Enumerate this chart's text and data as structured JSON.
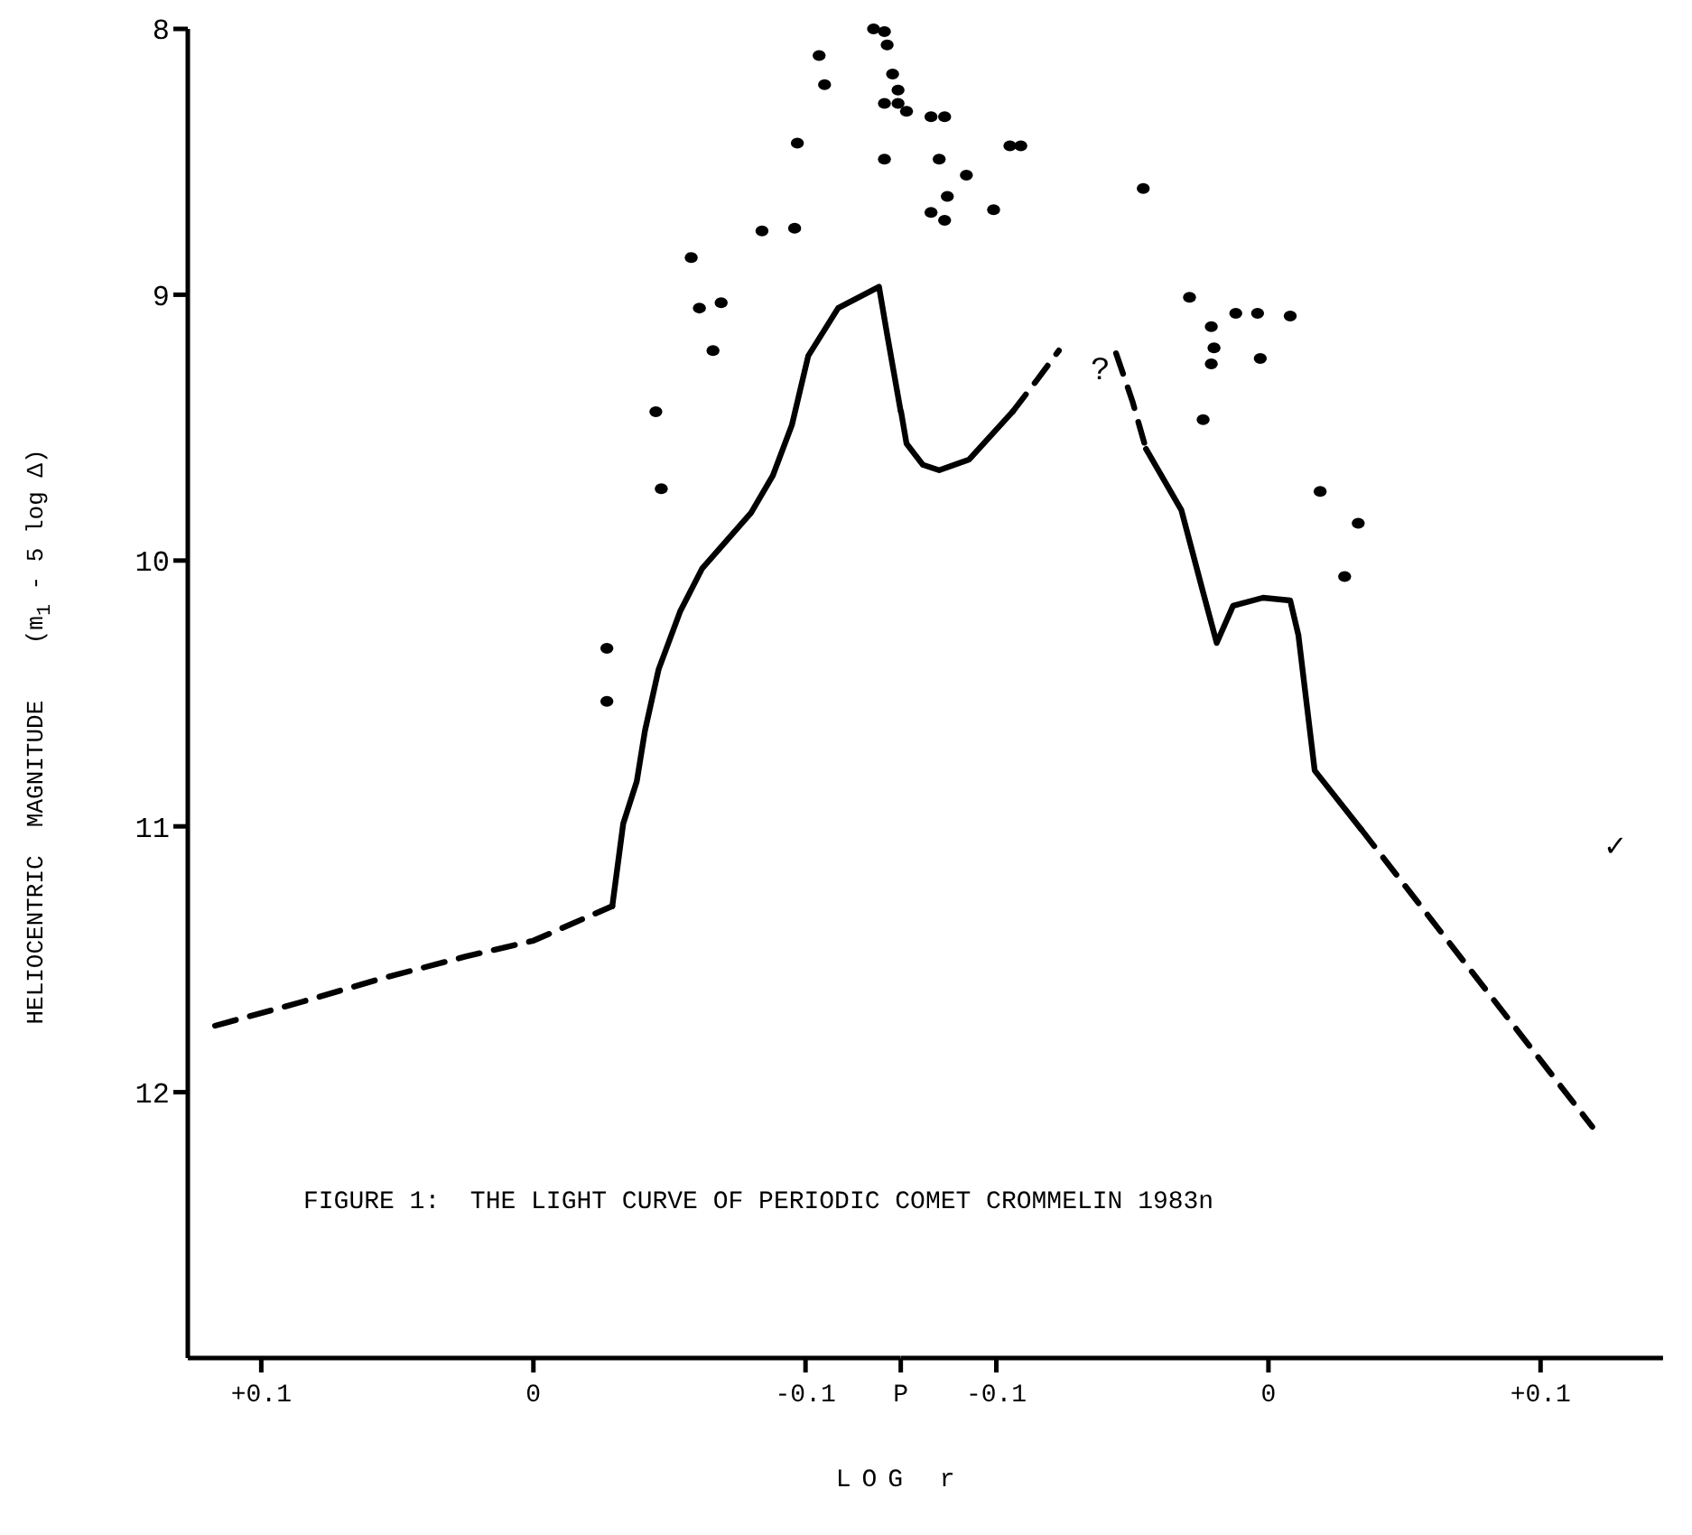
{
  "chart_data": [
    {
      "type": "line",
      "xlabel": "LOG r",
      "ylabel": "HELIOCENTRIC  MAGNITUDE    (m$_{1}$ - 5 log Δ)",
      "xlim": [
        0.127,
        -0.135
      ],
      "xticks": [
        {
          "value": 0.1,
          "label": "+0.1"
        },
        {
          "value": 0,
          "label": "0"
        },
        {
          "value": -0.1,
          "label": "-0.1"
        },
        {
          "value": -0.135,
          "label": "P"
        }
      ],
      "ylim": [
        13,
        8
      ],
      "yticks": [
        8,
        9,
        10,
        11,
        12
      ],
      "grid": false,
      "annotations": [
        "FIGURE 1:  THE LIGHT CURVE OF PERIODIC COMET CROMMELIN 1983n"
      ],
      "series": [
        {
          "line_style": "dashed",
          "marker": "none",
          "color": "#000000",
          "x": [
            0.117,
            0.085,
            0.055,
            0.025,
            0,
            -0.029
          ],
          "values": [
            11.75,
            11.66,
            11.57,
            11.49,
            11.43,
            11.3
          ]
        },
        {
          "line_style": "solid",
          "marker": "none",
          "color": "#000000",
          "x": [
            -0.029,
            -0.033,
            -0.038,
            -0.041,
            -0.046,
            -0.054,
            -0.062,
            -0.08,
            -0.088,
            -0.095,
            -0.101,
            -0.112,
            -0.127,
            -0.13,
            -0.135
          ],
          "values": [
            11.3,
            10.99,
            10.83,
            10.64,
            10.41,
            10.19,
            10.03,
            9.82,
            9.68,
            9.49,
            9.23,
            9.05,
            8.97,
            9.15,
            9.44
          ]
        },
        {
          "type": "scatter",
          "marker": "circle",
          "color": "#000000",
          "x": [
            -0.125,
            -0.129,
            -0.13,
            -0.105,
            -0.107,
            -0.132,
            -0.134,
            -0.129,
            -0.134,
            -0.097,
            -0.129,
            -0.096,
            -0.084,
            -0.058,
            -0.061,
            -0.069,
            -0.066,
            -0.045,
            -0.047,
            -0.027,
            -0.027
          ],
          "values": [
            8.0,
            8.01,
            8.06,
            8.1,
            8.21,
            8.17,
            8.23,
            8.28,
            8.28,
            8.43,
            8.49,
            8.75,
            8.76,
            8.86,
            9.05,
            9.03,
            9.21,
            9.44,
            9.73,
            10.33,
            10.53
          ]
        }
      ]
    },
    {
      "type": "line",
      "xlim": [
        -0.135,
        0.145
      ],
      "xticks": [
        {
          "value": -0.1,
          "label": "-0.1"
        },
        {
          "value": 0,
          "label": "0"
        },
        {
          "value": 0.1,
          "label": "+0.1"
        }
      ],
      "ylim": [
        13,
        8
      ],
      "tick_labels": "x",
      "grid": false,
      "annotations": [
        "?",
        "✓"
      ],
      "series": [
        {
          "line_style": "solid",
          "marker": "none",
          "color": "#000000",
          "x": [
            -0.135,
            -0.133,
            -0.127,
            -0.121,
            -0.11,
            -0.094
          ],
          "values": [
            9.44,
            9.56,
            9.64,
            9.66,
            9.62,
            9.44
          ]
        },
        {
          "line_style": "dashed",
          "marker": "none",
          "color": "#000000",
          "x": [
            -0.094,
            -0.085,
            -0.077
          ],
          "values": [
            9.44,
            9.32,
            9.21
          ]
        },
        {
          "line_style": "dashed",
          "marker": "none",
          "color": "#000000",
          "x": [
            -0.056,
            -0.05,
            -0.045
          ],
          "values": [
            9.22,
            9.4,
            9.58
          ]
        },
        {
          "line_style": "solid",
          "marker": "none",
          "color": "#000000",
          "x": [
            -0.045,
            -0.032,
            -0.024,
            -0.019,
            -0.013,
            -0.002,
            0.008,
            0.011,
            0.017,
            0.034
          ],
          "values": [
            9.58,
            9.81,
            10.12,
            10.31,
            10.17,
            10.14,
            10.15,
            10.28,
            10.79,
            11.01
          ]
        },
        {
          "line_style": "dashed",
          "marker": "none",
          "color": "#000000",
          "x": [
            0.034,
            0.119
          ],
          "values": [
            11.01,
            12.13
          ]
        },
        {
          "type": "scatter",
          "marker": "circle",
          "color": "#000000",
          "x": [
            -0.133,
            -0.124,
            -0.119,
            -0.121,
            -0.111,
            -0.095,
            -0.091,
            -0.118,
            -0.124,
            -0.119,
            -0.101,
            -0.046,
            -0.029,
            -0.021,
            -0.012,
            -0.004,
            0.008,
            -0.02,
            -0.021,
            -0.003,
            -0.024,
            0.019,
            0.033,
            0.028
          ],
          "values": [
            8.31,
            8.33,
            8.33,
            8.49,
            8.55,
            8.44,
            8.44,
            8.63,
            8.69,
            8.72,
            8.68,
            8.6,
            9.01,
            9.12,
            9.07,
            9.07,
            9.08,
            9.2,
            9.26,
            9.24,
            9.47,
            9.74,
            9.86,
            10.06
          ]
        }
      ]
    }
  ]
}
